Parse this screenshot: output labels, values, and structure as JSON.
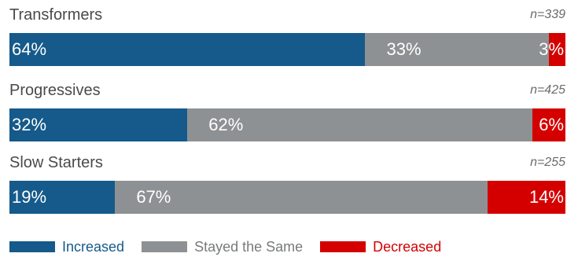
{
  "chart_data": {
    "type": "bar",
    "orientation": "horizontal-stacked",
    "unit": "%",
    "categories": [
      "Transformers",
      "Progressives",
      "Slow Starters"
    ],
    "sample_sizes": [
      "n=339",
      "n=425",
      "n=255"
    ],
    "series": [
      {
        "name": "Increased",
        "color": "#155a8a",
        "values": [
          64,
          32,
          19
        ],
        "labels": [
          "64%",
          "32%",
          "19%"
        ]
      },
      {
        "name": "Stayed the Same",
        "color": "#8e9193",
        "values": [
          33,
          62,
          67
        ],
        "labels": [
          "33%",
          "62%",
          "67%"
        ]
      },
      {
        "name": "Decreased",
        "color": "#d40000",
        "values": [
          3,
          6,
          14
        ],
        "labels": [
          "3%",
          "6%",
          "14%"
        ]
      }
    ],
    "xlim": [
      0,
      100
    ],
    "grid": false,
    "legend_position": "bottom-left"
  }
}
